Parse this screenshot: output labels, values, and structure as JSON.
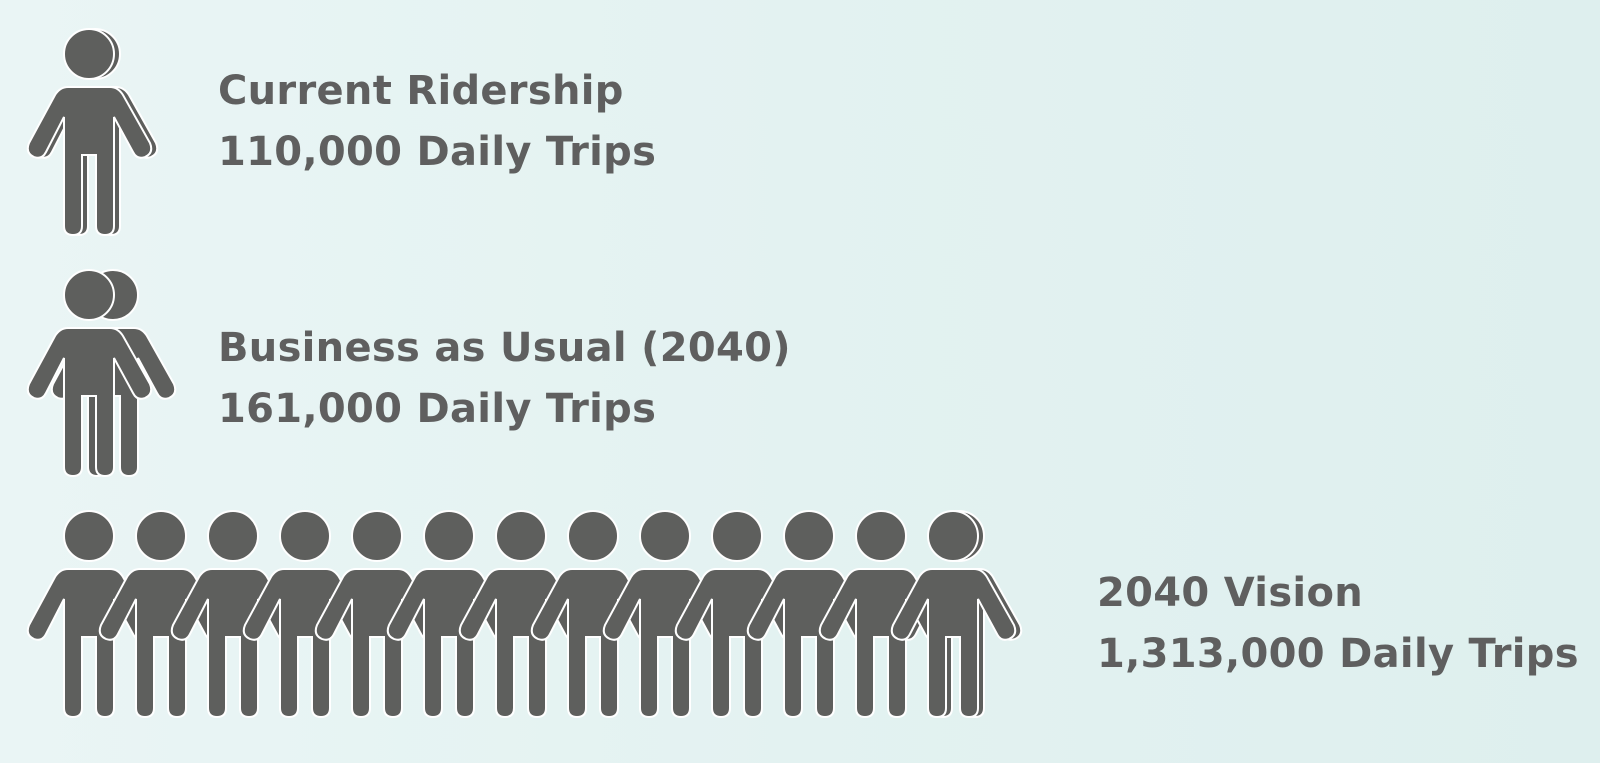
{
  "colors": {
    "person": "#5e5f5d",
    "person_outline": "#ffffff",
    "text": "#5f5f5f",
    "background": "#e3f2f1"
  },
  "icon": "person-icon",
  "chart_data": {
    "type": "pictograph",
    "series": [
      {
        "name": "Current Ridership",
        "value_label": "110,000 Daily Trips",
        "value": 110000,
        "icon_count": 1.1
      },
      {
        "name": "Business as Usual (2040)",
        "value_label": "161,000 Daily Trips",
        "value": 161000,
        "icon_count": 1.6
      },
      {
        "name": "2040 Vision",
        "value_label": "1,313,000 Daily Trips",
        "value": 1313000,
        "icon_count": 13.1
      }
    ]
  }
}
